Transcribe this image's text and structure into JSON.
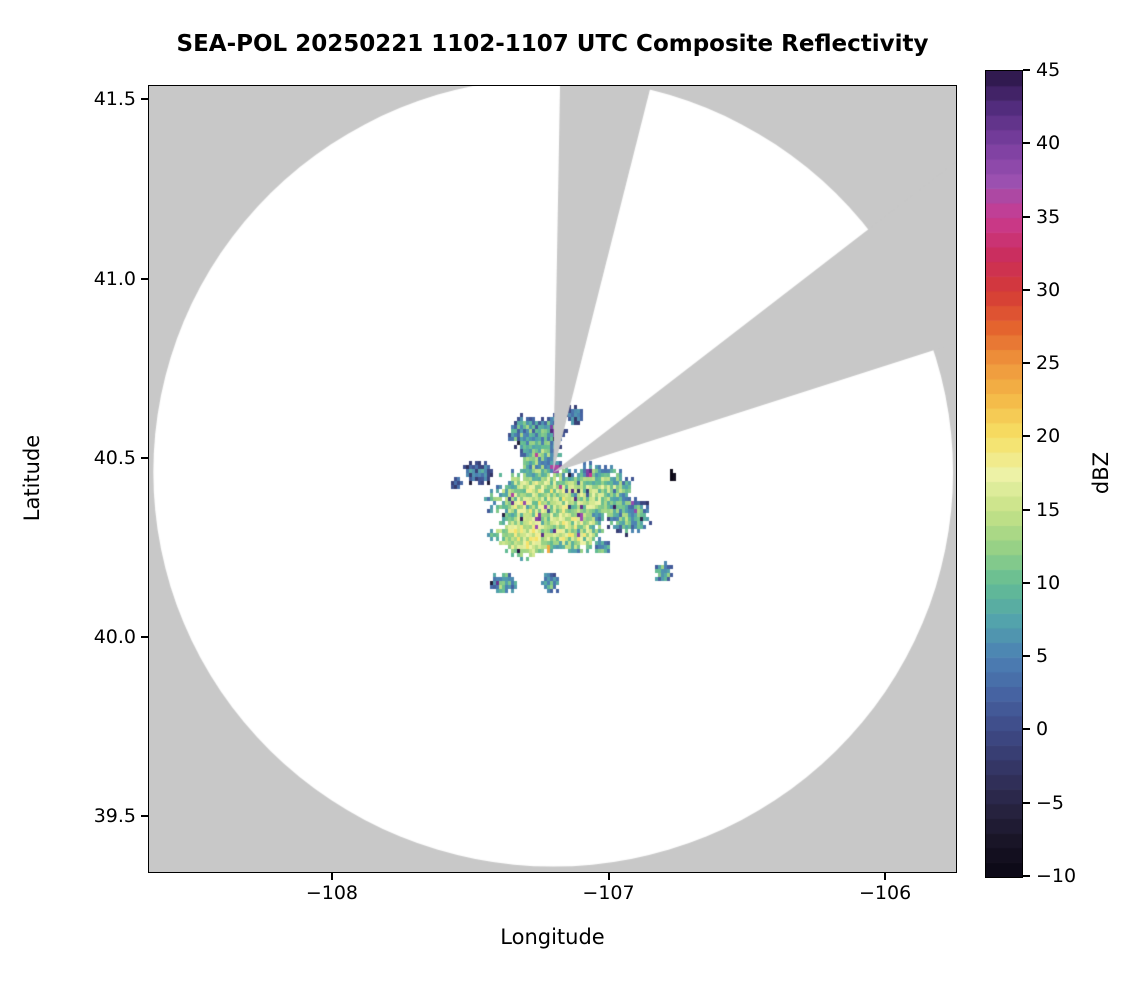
{
  "chart_data": {
    "type": "heatmap",
    "title": "SEA-POL 20250221 1102-1107 UTC Composite Reflectivity",
    "xlabel": "Longitude",
    "ylabel": "Latitude",
    "units": "dBZ",
    "xlim": [
      -108.665,
      -105.74
    ],
    "ylim": [
      39.342,
      41.54
    ],
    "xticks": [
      -108,
      -107,
      -106
    ],
    "xtick_labels": [
      "−108",
      "−107",
      "−106"
    ],
    "yticks": [
      39.5,
      40.0,
      40.5,
      41.0,
      41.5
    ],
    "ytick_labels": [
      "39.5",
      "40.0",
      "40.5",
      "41.0",
      "41.5"
    ],
    "grid": false,
    "colorbar": {
      "label": "dBZ",
      "vmin": -10,
      "vmax": 45,
      "step": 1,
      "ticks": [
        -10,
        -5,
        0,
        5,
        10,
        15,
        20,
        25,
        30,
        35,
        40,
        45
      ],
      "tick_labels": [
        "−10",
        "−5",
        "0",
        "5",
        "10",
        "15",
        "20",
        "25",
        "30",
        "35",
        "40",
        "45"
      ],
      "position": "right"
    },
    "colormap_stops": [
      [
        -10,
        "#0a0714"
      ],
      [
        -7.5,
        "#191527"
      ],
      [
        -5,
        "#292544"
      ],
      [
        -2.5,
        "#343665"
      ],
      [
        0,
        "#3e4a87"
      ],
      [
        2.5,
        "#4663a2"
      ],
      [
        5,
        "#4c80b3"
      ],
      [
        7.5,
        "#53a3ac"
      ],
      [
        10,
        "#63bc94"
      ],
      [
        12.5,
        "#97d186"
      ],
      [
        15,
        "#c6e287"
      ],
      [
        17.5,
        "#edf2a6"
      ],
      [
        20,
        "#f6e166"
      ],
      [
        22.5,
        "#f4bc4a"
      ],
      [
        25,
        "#ef973c"
      ],
      [
        27.5,
        "#e4642e"
      ],
      [
        30,
        "#d43937"
      ],
      [
        32.5,
        "#ca2e5f"
      ],
      [
        35,
        "#c93b90"
      ],
      [
        37.5,
        "#9b50b0"
      ],
      [
        40,
        "#7a3fa0"
      ],
      [
        42.5,
        "#522c7d"
      ],
      [
        45,
        "#291645"
      ]
    ],
    "radar": {
      "center_lon": -107.2,
      "center_lat": 40.46,
      "range_deg_lat": 1.1,
      "inside_color": "#ffffff",
      "outside_color": "#c8c8c8"
    },
    "blocked_sectors": [
      {
        "az_start": 1,
        "az_end": 14
      },
      {
        "az_start": 52,
        "az_end": 72
      }
    ],
    "echo_blobs": [
      {
        "lon": -107.24,
        "lat": 40.38,
        "rx": 0.17,
        "ry": 0.085,
        "base": 15,
        "amp": 5,
        "fall": 14,
        "seed": 1
      },
      {
        "lon": -107.05,
        "lat": 40.4,
        "rx": 0.13,
        "ry": 0.075,
        "base": 13,
        "amp": 5,
        "fall": 14,
        "seed": 2
      },
      {
        "lon": -107.3,
        "lat": 40.28,
        "rx": 0.11,
        "ry": 0.06,
        "base": 16,
        "amp": 4,
        "fall": 13,
        "seed": 3
      },
      {
        "lon": -107.13,
        "lat": 40.3,
        "rx": 0.1,
        "ry": 0.06,
        "base": 15,
        "amp": 5,
        "fall": 13,
        "seed": 4
      },
      {
        "lon": -106.93,
        "lat": 40.34,
        "rx": 0.07,
        "ry": 0.05,
        "base": 9,
        "amp": 6,
        "fall": 10,
        "seed": 5
      },
      {
        "lon": -107.25,
        "lat": 40.5,
        "rx": 0.07,
        "ry": 0.06,
        "base": 10,
        "amp": 6,
        "fall": 10,
        "seed": 6
      },
      {
        "lon": -107.3,
        "lat": 40.57,
        "rx": 0.055,
        "ry": 0.045,
        "base": 8,
        "amp": 6,
        "fall": 9,
        "seed": 7
      },
      {
        "lon": -107.21,
        "lat": 40.57,
        "rx": 0.05,
        "ry": 0.045,
        "base": 8,
        "amp": 6,
        "fall": 9,
        "seed": 8
      },
      {
        "lon": -107.12,
        "lat": 40.62,
        "rx": 0.035,
        "ry": 0.025,
        "base": 6,
        "amp": 5,
        "fall": 8,
        "seed": 9
      },
      {
        "lon": -107.47,
        "lat": 40.46,
        "rx": 0.05,
        "ry": 0.032,
        "base": 4,
        "amp": 5,
        "fall": 8,
        "seed": 10
      },
      {
        "lon": -107.55,
        "lat": 40.43,
        "rx": 0.018,
        "ry": 0.014,
        "base": 3,
        "amp": 4,
        "fall": 6,
        "seed": 11
      },
      {
        "lon": -107.38,
        "lat": 40.15,
        "rx": 0.038,
        "ry": 0.03,
        "base": 10,
        "amp": 5,
        "fall": 9,
        "seed": 12
      },
      {
        "lon": -107.21,
        "lat": 40.15,
        "rx": 0.03,
        "ry": 0.025,
        "base": 9,
        "amp": 5,
        "fall": 9,
        "seed": 13
      },
      {
        "lon": -106.8,
        "lat": 40.18,
        "rx": 0.034,
        "ry": 0.027,
        "base": 9,
        "amp": 5,
        "fall": 9,
        "seed": 14
      },
      {
        "lon": -107.02,
        "lat": 40.25,
        "rx": 0.03,
        "ry": 0.02,
        "base": 8,
        "amp": 5,
        "fall": 8,
        "seed": 15
      },
      {
        "lon": -106.77,
        "lat": 40.45,
        "rx": 0.013,
        "ry": 0.012,
        "base": -9,
        "amp": 1,
        "fall": 0,
        "seed": 16,
        "speck": true
      },
      {
        "lon": -107.215,
        "lat": 40.246,
        "rx": 0.008,
        "ry": 0.007,
        "base": 25,
        "amp": 2,
        "fall": 0,
        "seed": 17,
        "speck": true
      },
      {
        "lon": -107.19,
        "lat": 40.47,
        "rx": 0.016,
        "ry": 0.013,
        "base": 40,
        "amp": 4,
        "fall": 0,
        "seed": 18,
        "speck": true
      },
      {
        "lon": -107.2,
        "lat": 40.575,
        "rx": 0.013,
        "ry": 0.011,
        "base": 41,
        "amp": 3,
        "fall": 0,
        "seed": 19,
        "speck": true
      },
      {
        "lon": -107.1,
        "lat": 40.34,
        "rx": 0.012,
        "ry": 0.01,
        "base": 40,
        "amp": 3,
        "fall": 0,
        "seed": 20,
        "speck": true
      },
      {
        "lon": -107.25,
        "lat": 40.33,
        "rx": 0.011,
        "ry": 0.01,
        "base": 42,
        "amp": 3,
        "fall": 0,
        "seed": 21,
        "speck": true
      },
      {
        "lon": -107.07,
        "lat": 40.46,
        "rx": 0.012,
        "ry": 0.01,
        "base": 38,
        "amp": 4,
        "fall": 0,
        "seed": 22,
        "speck": true
      }
    ]
  }
}
